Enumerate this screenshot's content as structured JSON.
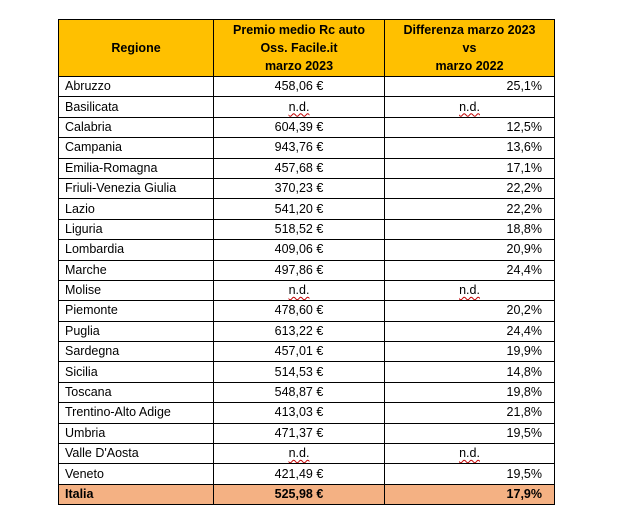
{
  "header": {
    "region": "Regione",
    "premium_line1": "Premio medio Rc auto",
    "premium_line2": "Oss. Facile.it",
    "premium_line3": "marzo 2023",
    "diff_line1": "Differenza marzo 2023",
    "diff_line2": "vs",
    "diff_line3": "marzo 2022"
  },
  "rows": [
    {
      "region": "Abruzzo",
      "premium": "458,06 €",
      "diff": "25,1%"
    },
    {
      "region": "Basilicata",
      "premium": "n.d.",
      "diff": "n.d."
    },
    {
      "region": "Calabria",
      "premium": "604,39 €",
      "diff": "12,5%"
    },
    {
      "region": "Campania",
      "premium": "943,76 €",
      "diff": "13,6%"
    },
    {
      "region": "Emilia-Romagna",
      "premium": "457,68 €",
      "diff": "17,1%"
    },
    {
      "region": "Friuli-Venezia Giulia",
      "premium": "370,23 €",
      "diff": "22,2%"
    },
    {
      "region": "Lazio",
      "premium": "541,20 €",
      "diff": "22,2%"
    },
    {
      "region": "Liguria",
      "premium": "518,52 €",
      "diff": "18,8%"
    },
    {
      "region": "Lombardia",
      "premium": "409,06 €",
      "diff": "20,9%"
    },
    {
      "region": "Marche",
      "premium": "497,86 €",
      "diff": "24,4%"
    },
    {
      "region": "Molise",
      "premium": "n.d.",
      "diff": "n.d."
    },
    {
      "region": "Piemonte",
      "premium": "478,60 €",
      "diff": "20,2%"
    },
    {
      "region": "Puglia",
      "premium": "613,22 €",
      "diff": "24,4%"
    },
    {
      "region": "Sardegna",
      "premium": "457,01 €",
      "diff": "19,9%"
    },
    {
      "region": "Sicilia",
      "premium": "514,53 €",
      "diff": "14,8%"
    },
    {
      "region": "Toscana",
      "premium": "548,87 €",
      "diff": "19,8%"
    },
    {
      "region": "Trentino-Alto Adige",
      "premium": "413,03 €",
      "diff": "21,8%"
    },
    {
      "region": "Umbria",
      "premium": "471,37 €",
      "diff": "19,5%"
    },
    {
      "region": "Valle D'Aosta",
      "premium": "n.d.",
      "diff": "n.d."
    },
    {
      "region": "Veneto",
      "premium": "421,49 €",
      "diff": "19,5%"
    }
  ],
  "total": {
    "region": "Italia",
    "premium": "525,98 €",
    "diff": "17,9%"
  },
  "colors": {
    "header_bg": "#FFC000",
    "total_bg": "#F4B183",
    "border": "#000000"
  }
}
